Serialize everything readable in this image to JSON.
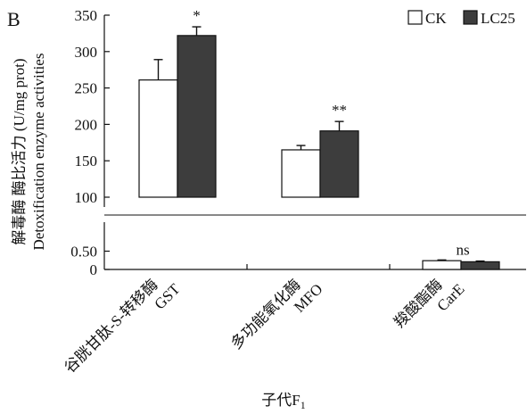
{
  "panel_label": "B",
  "chart_data": {
    "type": "bar",
    "panel": "B",
    "ylabel_cn": "解毒酶 酶比活力 (U/mg prot)",
    "ylabel_en": "Detoxification enzyme activities",
    "xlabel": "子代F",
    "xlabel_subscript": "1",
    "axis_break": true,
    "upper_segment": {
      "ylim": [
        100,
        350
      ],
      "ticks": [
        "100",
        "150",
        "200",
        "250",
        "300",
        "350"
      ]
    },
    "lower_segment": {
      "ylim": [
        0,
        1
      ],
      "ticks": [
        "0",
        "0.50"
      ]
    },
    "categories": [
      {
        "cn": "谷胱甘肽-S-转移酶",
        "en": "GST"
      },
      {
        "cn": "多功能氧化酶",
        "en": "MFO"
      },
      {
        "cn": "羧酸酯酶",
        "en": "CarE"
      }
    ],
    "series": [
      {
        "name": "CK",
        "color": "#ffffff",
        "values": [
          261,
          165,
          0.24
        ],
        "errors": [
          28,
          6,
          0.02
        ]
      },
      {
        "name": "LC25",
        "color": "#3d3d3d",
        "values": [
          322,
          191,
          0.21
        ],
        "errors": [
          12,
          13,
          0.02
        ]
      }
    ],
    "significance": [
      "*",
      "**",
      "ns"
    ],
    "legend_position": "top-right",
    "grid": false
  }
}
